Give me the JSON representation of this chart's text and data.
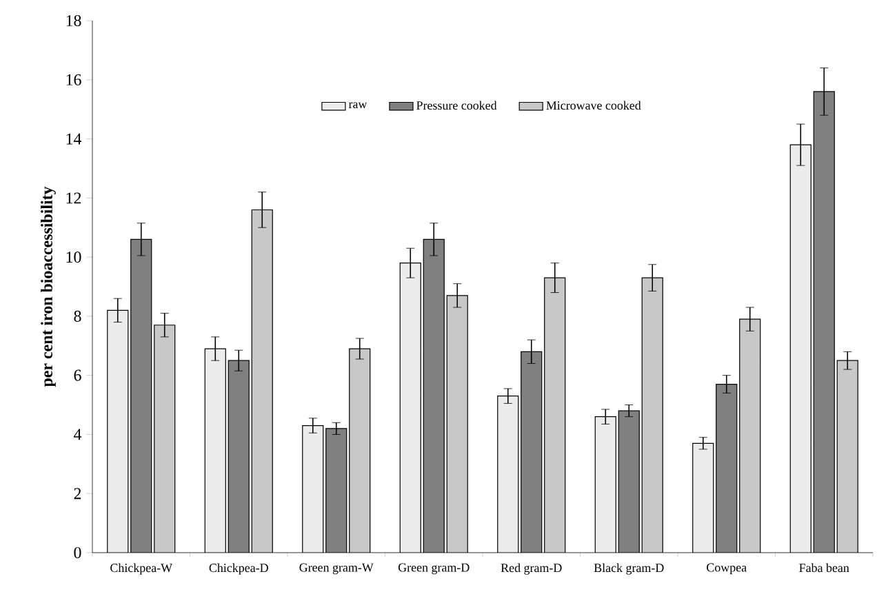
{
  "chart_data": {
    "type": "bar",
    "ylabel": "per cent  iron bioaccessibility",
    "categories": [
      "Chickpea-W",
      "Chickpea-D",
      "Green gram-W",
      "Green gram-D",
      "Red gram-D",
      "Black gram-D",
      "Cowpea",
      "Faba bean"
    ],
    "series": [
      {
        "name": "raw",
        "color": "#ececec",
        "values": [
          8.2,
          6.9,
          4.3,
          9.8,
          5.3,
          4.6,
          3.7,
          13.8
        ],
        "errors": [
          0.4,
          0.4,
          0.25,
          0.5,
          0.25,
          0.25,
          0.2,
          0.7
        ]
      },
      {
        "name": "Pressure cooked",
        "color": "#808080",
        "values": [
          10.6,
          6.5,
          4.2,
          10.6,
          6.8,
          4.8,
          5.7,
          15.6
        ],
        "errors": [
          0.55,
          0.35,
          0.2,
          0.55,
          0.4,
          0.2,
          0.3,
          0.8
        ]
      },
      {
        "name": "Microwave cooked",
        "color": "#c8c8c8",
        "values": [
          7.7,
          11.6,
          6.9,
          8.7,
          9.3,
          9.3,
          7.9,
          6.5
        ],
        "errors": [
          0.4,
          0.6,
          0.35,
          0.4,
          0.5,
          0.45,
          0.4,
          0.3
        ]
      }
    ],
    "ylim": [
      0,
      18
    ],
    "yticks": [
      0,
      2,
      4,
      6,
      8,
      10,
      12,
      14,
      16,
      18
    ],
    "grid": false,
    "legend": "top"
  }
}
